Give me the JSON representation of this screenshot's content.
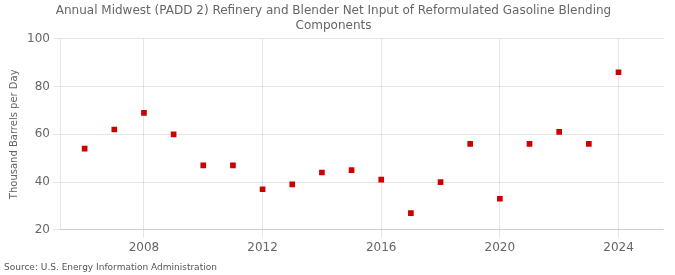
{
  "chart_data": {
    "type": "scatter",
    "title": "Annual Midwest (PADD 2) Refinery and Blender Net Input of Reformulated Gasoline Blending\nComponents",
    "y_label": "Thousand Barrels per Day",
    "annotations": [
      "Source: U.S. Energy Information Administration"
    ],
    "x": [
      2006,
      2007,
      2008,
      2009,
      2010,
      2011,
      2012,
      2013,
      2014,
      2015,
      2016,
      2017,
      2018,
      2019,
      2020,
      2021,
      2022,
      2023,
      2024
    ],
    "values": [
      54,
      62,
      69,
      60,
      47,
      47,
      37,
      39,
      44,
      45,
      41,
      27,
      40,
      56,
      33,
      56,
      61,
      56,
      86
    ],
    "color": "#cc0000",
    "marker": "square",
    "xlim": [
      2005.2,
      2025.5
    ],
    "xticks": [
      2008,
      2012,
      2016,
      2020,
      2024
    ],
    "ylim": [
      20,
      100
    ],
    "yticks": [
      20,
      40,
      60,
      80,
      100
    ],
    "grid": true
  }
}
